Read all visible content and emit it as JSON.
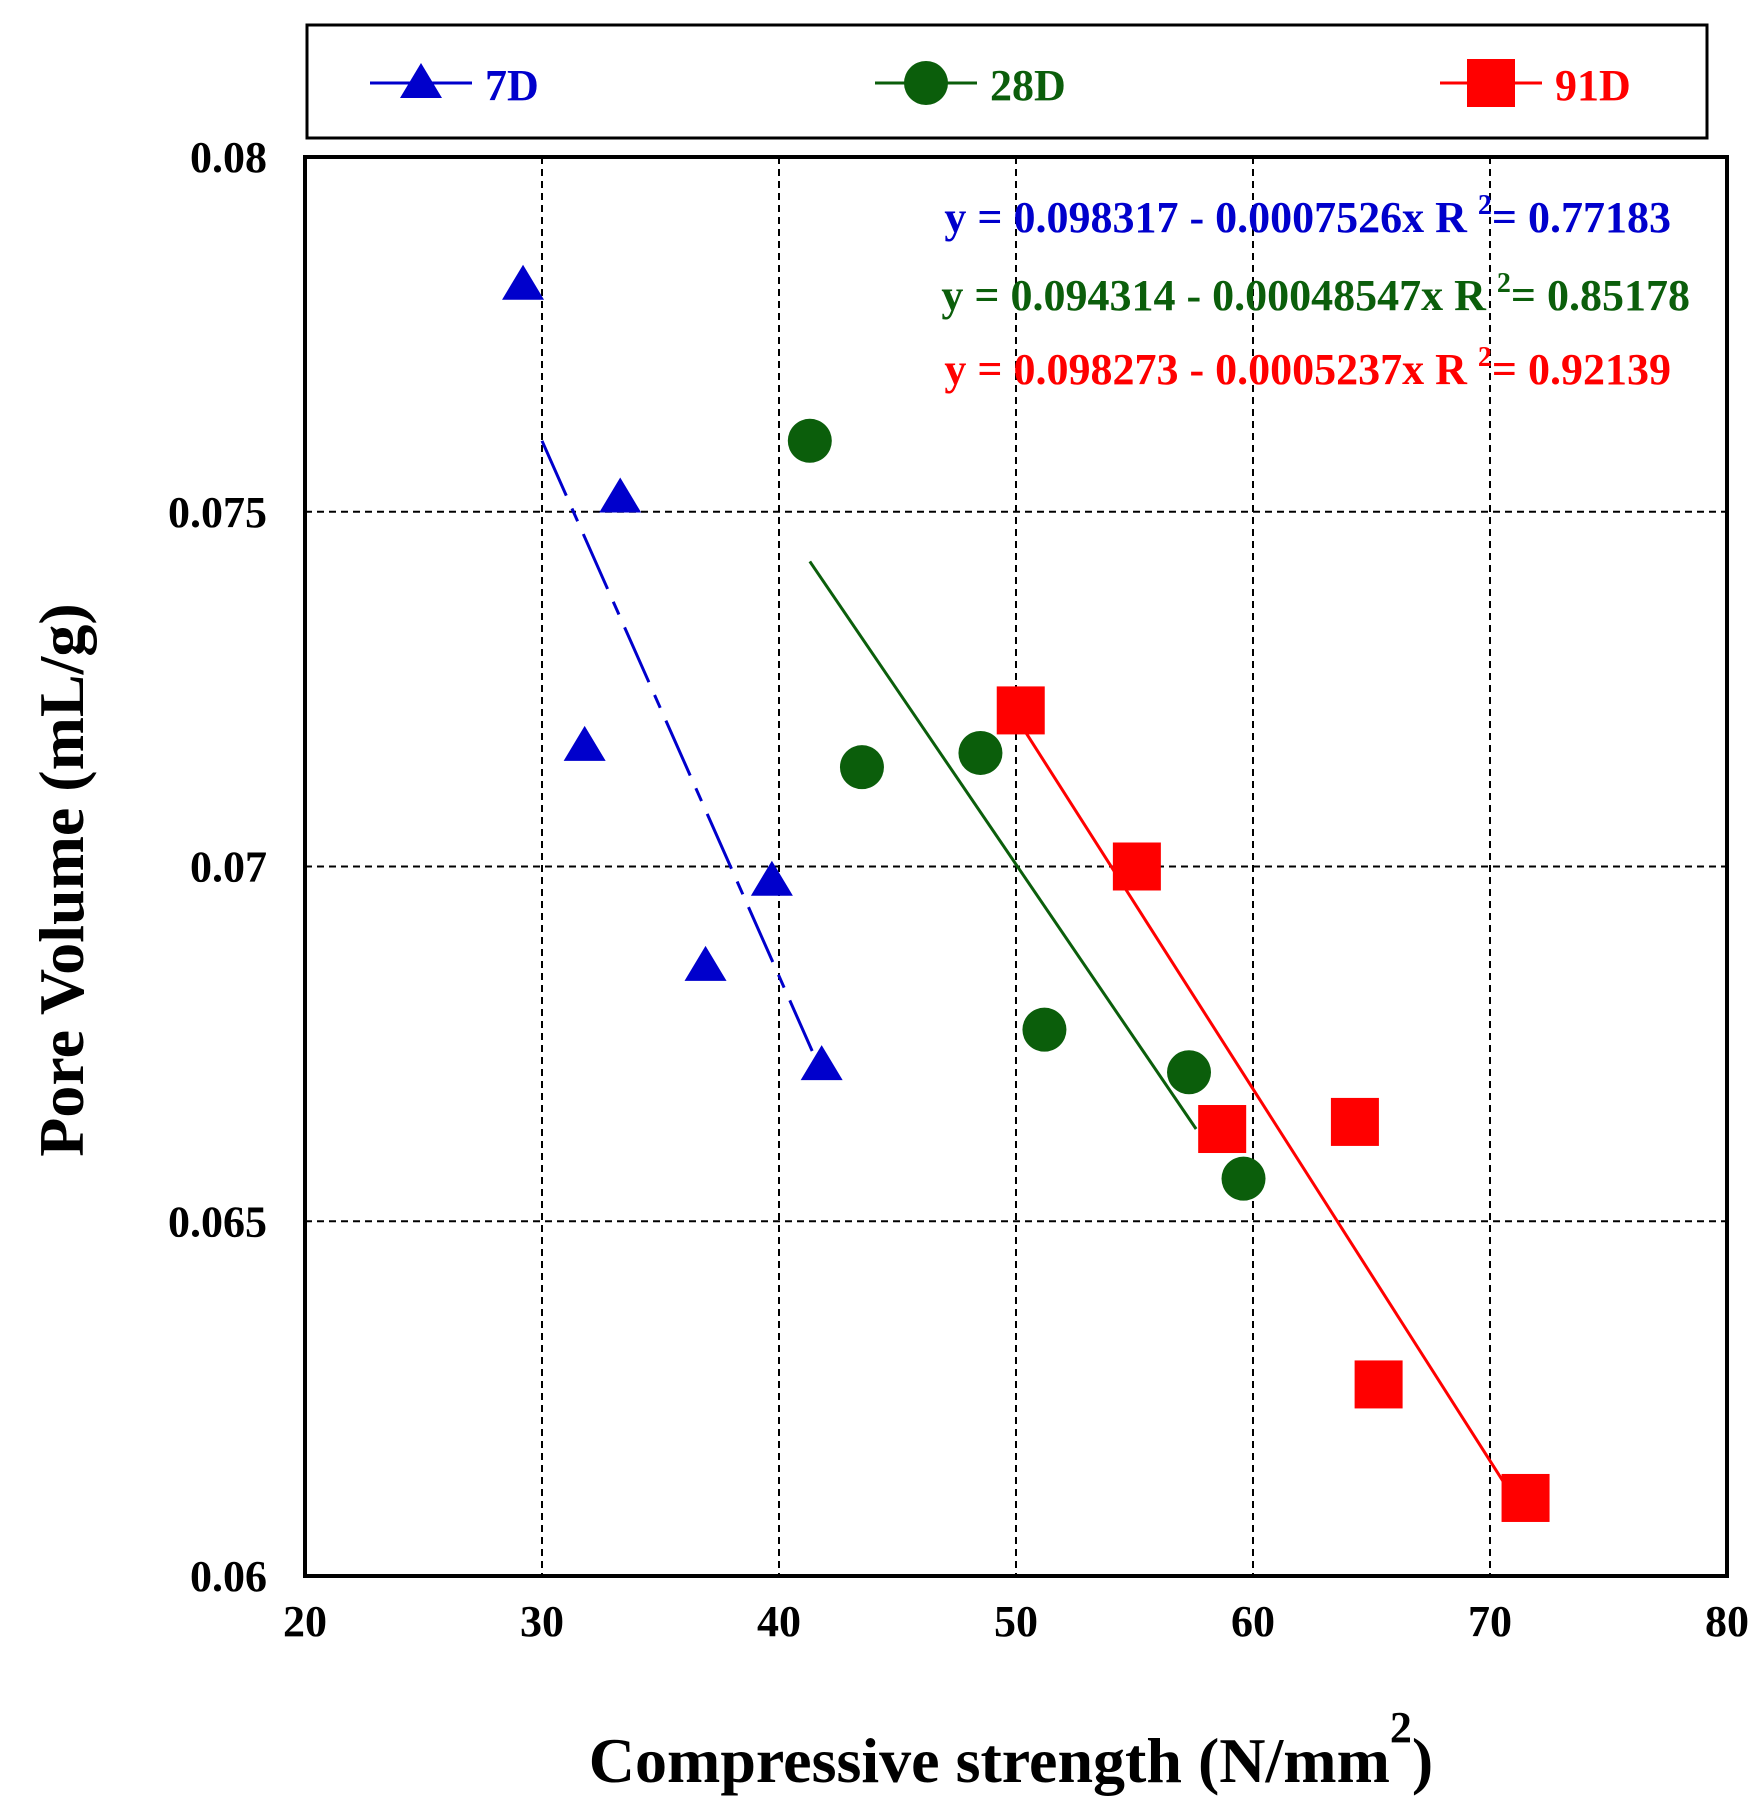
{
  "chart_data": {
    "type": "scatter",
    "xlabel": "Compressive strength (N/mm",
    "xlabel_sup": "2",
    "xlabel_end": ")",
    "ylabel": "Pore Volume  (mL/g)",
    "xlim": [
      20,
      80
    ],
    "ylim": [
      0.06,
      0.08
    ],
    "xticks": [
      20,
      30,
      40,
      50,
      60,
      70,
      80
    ],
    "xtick_labels": [
      "20",
      "30",
      "40",
      "50",
      "60",
      "70",
      "80"
    ],
    "yticks": [
      0.06,
      0.065,
      0.07,
      0.075,
      0.08
    ],
    "ytick_labels": [
      "0.06",
      "0.065",
      "0.07",
      "0.075",
      "0.08"
    ],
    "grid": true,
    "legend_position": "top",
    "series": [
      {
        "name": "7D",
        "color": "#0000cc",
        "marker": "triangle",
        "line_style": "dashed",
        "x": [
          29.2,
          31.8,
          33.3,
          36.9,
          39.7,
          41.8
        ],
        "y": [
          0.0782,
          0.0717,
          0.0752,
          0.0686,
          0.0698,
          0.0672
        ],
        "fit": {
          "x": [
            30.0,
            41.4
          ],
          "y": [
            0.076,
            0.0674
          ]
        },
        "equation": "y = 0.098317 - 0.0007526x",
        "r_label": "R",
        "r_sup": "2",
        "r_value": "= 0.77183"
      },
      {
        "name": "28D",
        "color": "#0b5e0b",
        "marker": "circle",
        "line_style": "solid",
        "x": [
          41.3,
          43.5,
          48.5,
          51.2,
          57.3,
          59.6
        ],
        "y": [
          0.076,
          0.0714,
          0.0716,
          0.0677,
          0.0671,
          0.0656
        ],
        "fit": {
          "x": [
            41.3,
            57.6
          ],
          "y": [
            0.0743,
            0.0663
          ]
        },
        "equation": "y = 0.094314 - 0.00048547x",
        "r_label": "R",
        "r_sup": "2",
        "r_value": "= 0.85178"
      },
      {
        "name": "91D",
        "color": "#ff0000",
        "marker": "square",
        "line_style": "solid",
        "x": [
          50.2,
          55.1,
          58.7,
          64.3,
          65.3,
          71.5
        ],
        "y": [
          0.0722,
          0.07,
          0.0663,
          0.0664,
          0.0627,
          0.0611
        ],
        "fit": {
          "x": [
            50.2,
            71.0
          ],
          "y": [
            0.072,
            0.0611
          ]
        },
        "equation": "y = 0.098273 - 0.0005237x",
        "r_label": "R",
        "r_sup": "2",
        "r_value": "= 0.92139"
      }
    ]
  }
}
